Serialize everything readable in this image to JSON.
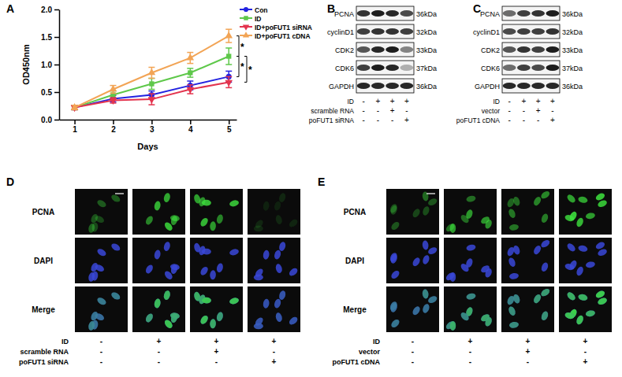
{
  "chart_data": {
    "type": "line",
    "title": "A",
    "x_label": "Days",
    "y_label": "OD450nm",
    "x": [
      1,
      2,
      3,
      4,
      5
    ],
    "xlim": [
      0.6,
      5.2
    ],
    "xticks": [
      1,
      2,
      3,
      4,
      5
    ],
    "ylim": [
      0,
      2
    ],
    "yticks": [
      {
        "value": 0,
        "label": "0.0"
      },
      0.5,
      {
        "value": 1,
        "label": "1.0"
      },
      1.5,
      {
        "value": 2,
        "label": "2.0"
      }
    ],
    "legend": "upper right",
    "series": [
      {
        "name": "Con",
        "color": "#2323e0",
        "marker": "circle",
        "values": [
          0.22,
          0.38,
          0.45,
          0.62,
          0.78
        ],
        "errors": [
          0.04,
          0.06,
          0.07,
          0.08,
          0.1
        ]
      },
      {
        "name": "ID",
        "color": "#5ec84a",
        "marker": "square",
        "values": [
          0.22,
          0.45,
          0.65,
          0.85,
          1.15
        ],
        "errors": [
          0.04,
          0.07,
          0.1,
          0.08,
          0.15
        ]
      },
      {
        "name": "ID+poFUT1 siRNA",
        "color": "#e3344e",
        "marker": "triangle-down",
        "values": [
          0.22,
          0.35,
          0.37,
          0.55,
          0.68
        ],
        "errors": [
          0.04,
          0.05,
          0.1,
          0.08,
          0.1
        ]
      },
      {
        "name": "ID+poFUT1 cDNA",
        "color": "#f2a455",
        "marker": "triangle",
        "values": [
          0.22,
          0.55,
          0.85,
          1.12,
          1.52
        ],
        "errors": [
          0.04,
          0.07,
          0.1,
          0.1,
          0.12
        ]
      }
    ],
    "annotations": [
      {
        "text": "*",
        "y": [
          1.52,
          1.15
        ]
      },
      {
        "text": "*",
        "y": [
          1.15,
          0.78
        ]
      },
      {
        "text": "*",
        "y": [
          1.15,
          0.68
        ]
      }
    ]
  },
  "western_blots": [
    {
      "label": "B",
      "proteins": [
        {
          "name": "PCNA",
          "size": "36kDa",
          "intensity": [
            0.85,
            0.95,
            0.9,
            0.75
          ]
        },
        {
          "name": "cyclinD1",
          "size": "32kDa",
          "intensity": [
            0.8,
            0.85,
            0.85,
            0.8
          ]
        },
        {
          "name": "CDK2",
          "size": "33kDa",
          "intensity": [
            0.7,
            0.9,
            0.95,
            0.5
          ]
        },
        {
          "name": "CDK6",
          "size": "37kDa",
          "intensity": [
            0.8,
            0.95,
            0.9,
            0.3
          ]
        },
        {
          "name": "GAPDH",
          "size": "36kDa",
          "intensity": [
            0.9,
            0.9,
            0.9,
            0.9
          ]
        }
      ],
      "conditions": [
        {
          "name": "ID",
          "signs": [
            "-",
            "+",
            "+",
            "+"
          ]
        },
        {
          "name": "scramble RNA",
          "signs": [
            "-",
            "-",
            "+",
            "-"
          ]
        },
        {
          "name": "poFUT1 siRNA",
          "signs": [
            "-",
            "-",
            "-",
            "+"
          ]
        }
      ]
    },
    {
      "label": "C",
      "proteins": [
        {
          "name": "PCNA",
          "size": "36kDa",
          "intensity": [
            0.6,
            0.8,
            0.85,
            0.95
          ]
        },
        {
          "name": "cyclinD1",
          "size": "32kDa",
          "intensity": [
            0.75,
            0.8,
            0.8,
            0.85
          ]
        },
        {
          "name": "CDK2",
          "size": "33kDa",
          "intensity": [
            0.7,
            0.85,
            0.8,
            0.95
          ]
        },
        {
          "name": "CDK6",
          "size": "37kDa",
          "intensity": [
            0.6,
            0.8,
            0.75,
            0.95
          ]
        },
        {
          "name": "GAPDH",
          "size": "36kDa",
          "intensity": [
            0.9,
            0.9,
            0.9,
            0.9
          ]
        }
      ],
      "conditions": [
        {
          "name": "ID",
          "signs": [
            "-",
            "+",
            "+",
            "+"
          ]
        },
        {
          "name": "vector",
          "signs": [
            "-",
            "-",
            "+",
            "-"
          ]
        },
        {
          "name": "poFUT1 cDNA",
          "signs": [
            "-",
            "-",
            "-",
            "+"
          ]
        }
      ]
    }
  ],
  "immunofluorescence": [
    {
      "label": "D",
      "rows": [
        "PCNA",
        "DAPI",
        "Merge"
      ],
      "pcna_intensity": [
        0.45,
        0.9,
        0.85,
        0.15
      ],
      "conditions": [
        {
          "name": "ID",
          "signs": [
            "-",
            "+",
            "+",
            "+"
          ]
        },
        {
          "name": "scramble RNA",
          "signs": [
            "-",
            "-",
            "+",
            "-"
          ]
        },
        {
          "name": "poFUT1 siRNA",
          "signs": [
            "-",
            "-",
            "-",
            "+"
          ]
        }
      ]
    },
    {
      "label": "E",
      "rows": [
        "PCNA",
        "DAPI",
        "Merge"
      ],
      "pcna_intensity": [
        0.45,
        0.7,
        0.6,
        1.0
      ],
      "conditions": [
        {
          "name": "ID",
          "signs": [
            "-",
            "+",
            "+",
            "+"
          ]
        },
        {
          "name": "vector",
          "signs": [
            "-",
            "-",
            "+",
            "-"
          ]
        },
        {
          "name": "poFUT1 cDNA",
          "signs": [
            "-",
            "-",
            "-",
            "+"
          ]
        }
      ]
    }
  ]
}
